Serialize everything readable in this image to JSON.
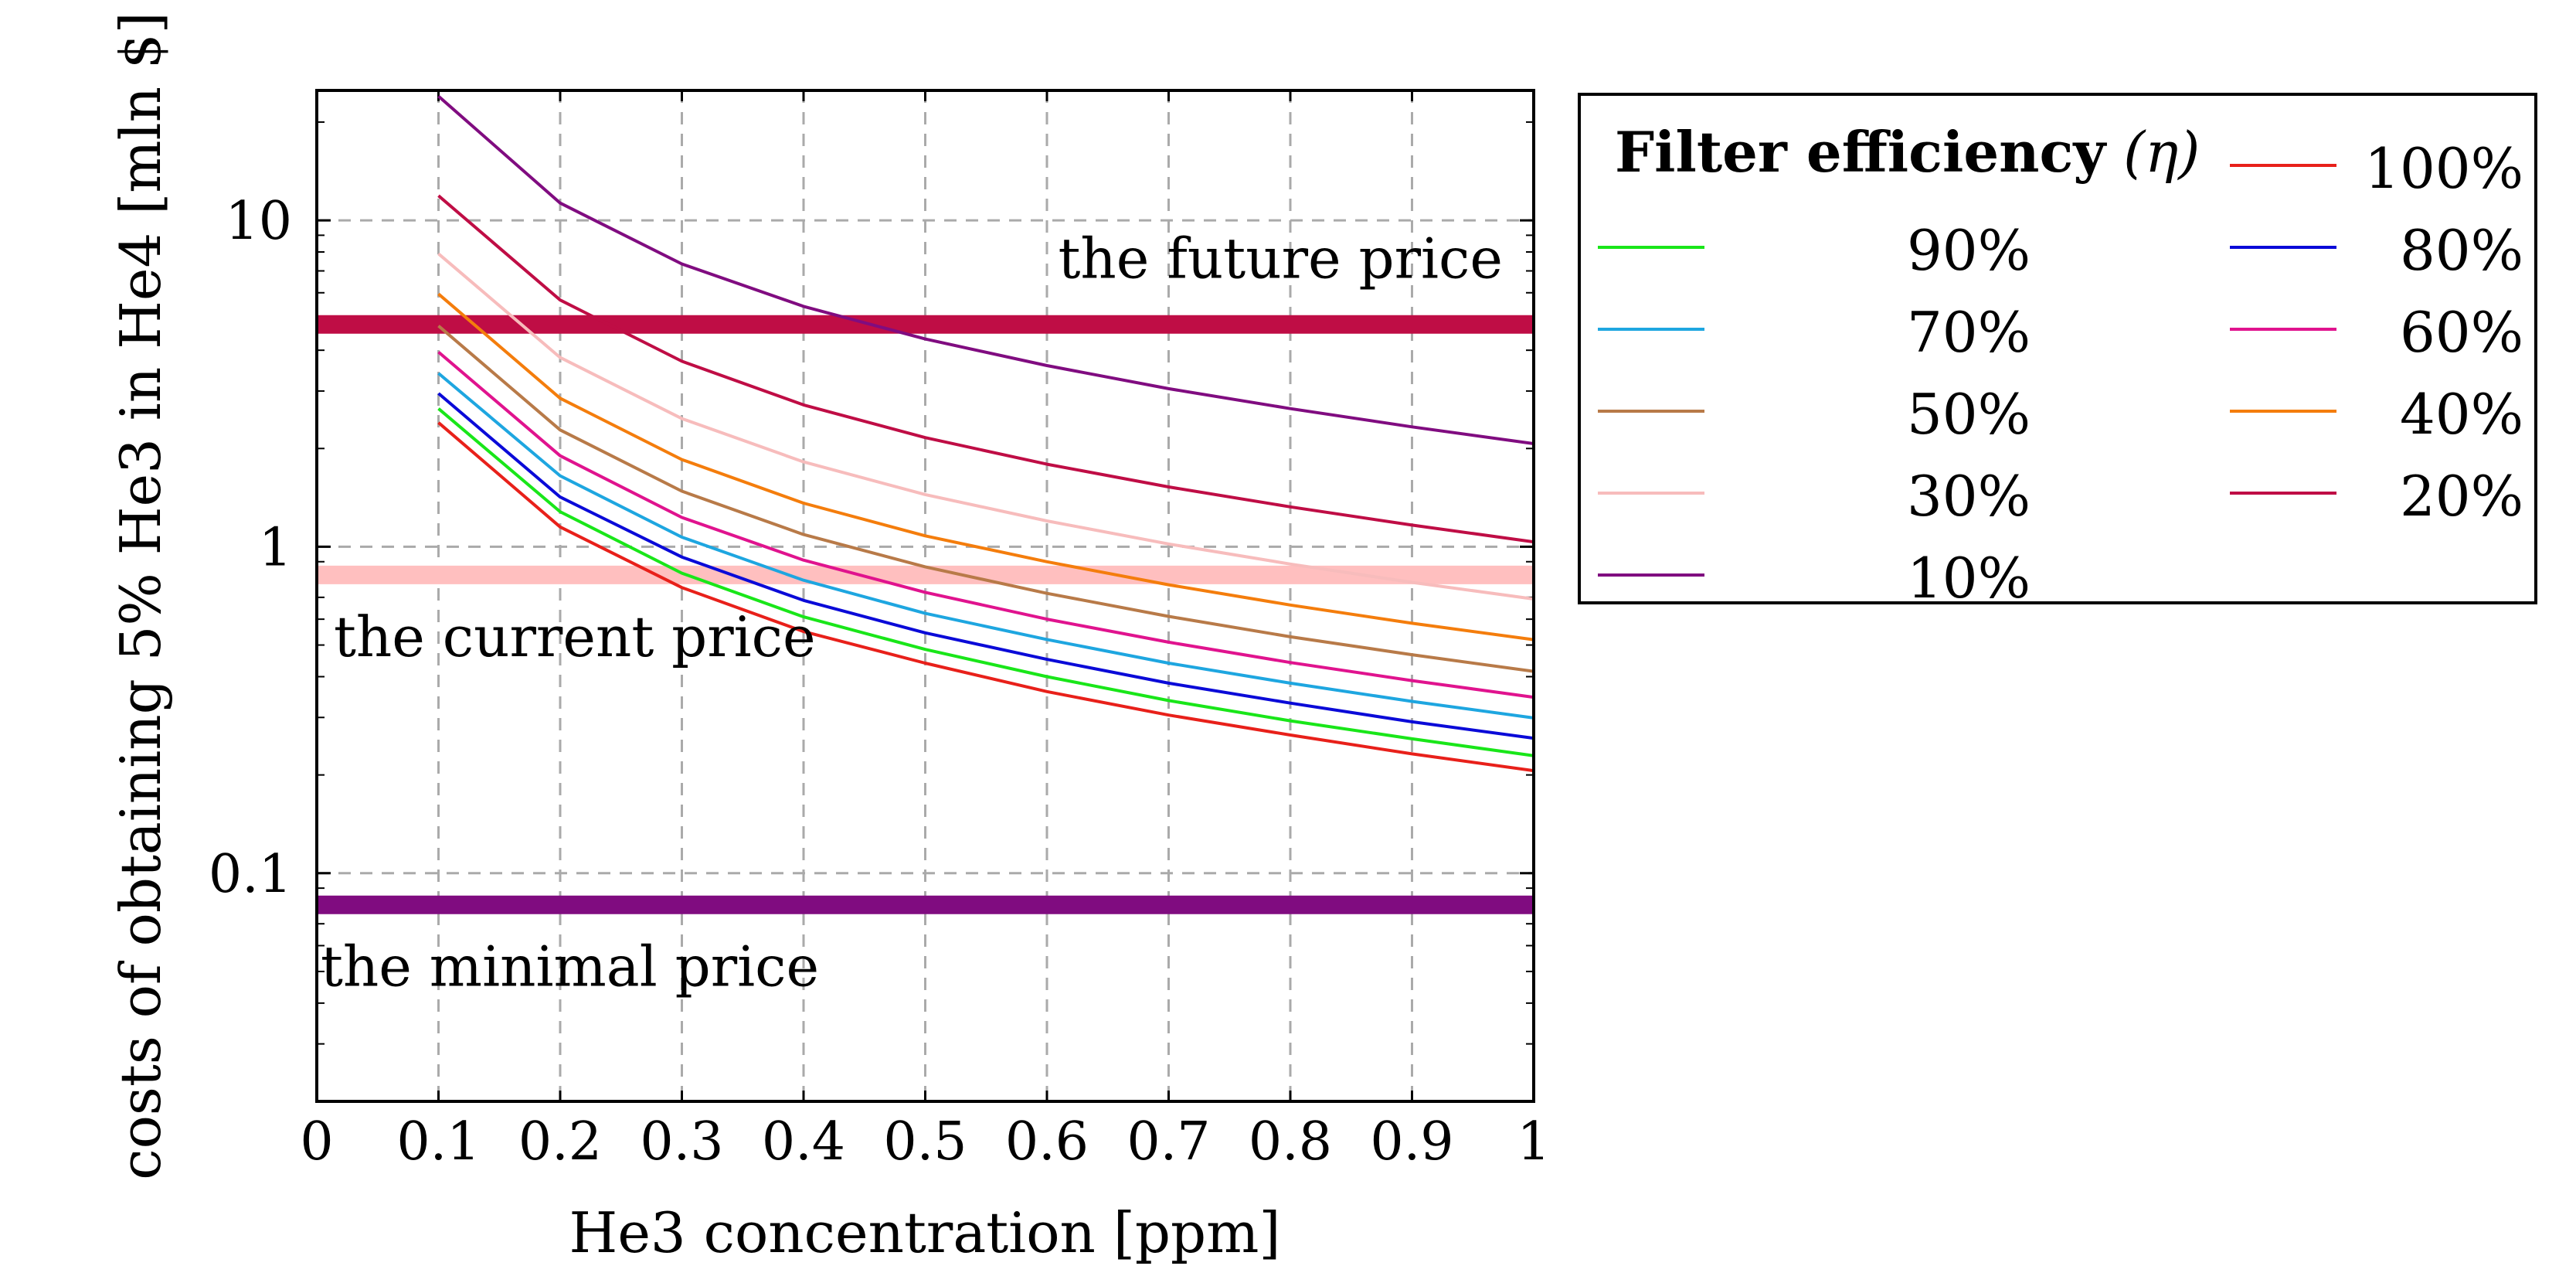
{
  "chart_data": {
    "type": "line",
    "title": "",
    "xlabel": "He3 concentration [ppm]",
    "ylabel": "costs of obtaining 5% He3 in He4 [mln $]",
    "xscale": "linear",
    "yscale": "log",
    "xlim": [
      0,
      1
    ],
    "ylim": [
      0.02,
      25
    ],
    "grid": true,
    "x_ticks": [
      0,
      0.1,
      0.2,
      0.3,
      0.4,
      0.5,
      0.6,
      0.7,
      0.8,
      0.9,
      1
    ],
    "x_tick_labels": [
      "0",
      "0.1",
      "0.2",
      "0.3",
      "0.4",
      "0.5",
      "0.6",
      "0.7",
      "0.8",
      "0.9",
      "1"
    ],
    "y_ticks": [
      0.1,
      1,
      10
    ],
    "y_tick_labels": [
      "0.1",
      "1",
      "10"
    ],
    "x": [
      0.1,
      0.2,
      0.3,
      0.4,
      0.5,
      0.6,
      0.7,
      0.8,
      0.9,
      1.0
    ],
    "legend": {
      "title_bold": "Filter efficiency",
      "title_symbol": "(η)",
      "placement": "outside-right"
    },
    "series": [
      {
        "name": "100%",
        "color": "#e8201a",
        "values": [
          2.4,
          1.15,
          0.75,
          0.55,
          0.44,
          0.36,
          0.305,
          0.265,
          0.232,
          0.206
        ]
      },
      {
        "name": "90%",
        "color": "#19e619",
        "values": [
          2.65,
          1.28,
          0.83,
          0.61,
          0.485,
          0.4,
          0.338,
          0.293,
          0.258,
          0.229
        ]
      },
      {
        "name": "80%",
        "color": "#0a0ad8",
        "values": [
          2.95,
          1.42,
          0.93,
          0.685,
          0.545,
          0.452,
          0.382,
          0.332,
          0.291,
          0.259
        ]
      },
      {
        "name": "70%",
        "color": "#1ea6e0",
        "values": [
          3.4,
          1.65,
          1.07,
          0.79,
          0.625,
          0.52,
          0.44,
          0.382,
          0.336,
          0.299
        ]
      },
      {
        "name": "60%",
        "color": "#e0138e",
        "values": [
          3.95,
          1.9,
          1.23,
          0.91,
          0.725,
          0.6,
          0.51,
          0.442,
          0.389,
          0.346
        ]
      },
      {
        "name": "50%",
        "color": "#b87a48",
        "values": [
          4.75,
          2.28,
          1.48,
          1.09,
          0.868,
          0.72,
          0.612,
          0.53,
          0.467,
          0.415
        ]
      },
      {
        "name": "40%",
        "color": "#f47d0c",
        "values": [
          5.95,
          2.85,
          1.85,
          1.36,
          1.08,
          0.9,
          0.765,
          0.663,
          0.583,
          0.519
        ]
      },
      {
        "name": "30%",
        "color": "#f7bcbc",
        "values": [
          7.9,
          3.8,
          2.47,
          1.82,
          1.445,
          1.2,
          1.02,
          0.885,
          0.778,
          0.692
        ]
      },
      {
        "name": "20%",
        "color": "#bf0d45",
        "values": [
          11.9,
          5.7,
          3.7,
          2.72,
          2.16,
          1.79,
          1.525,
          1.325,
          1.165,
          1.035
        ]
      },
      {
        "name": "10%",
        "color": "#800c80",
        "values": [
          24,
          11.3,
          7.35,
          5.45,
          4.33,
          3.59,
          3.05,
          2.65,
          2.33,
          2.07
        ]
      }
    ],
    "reference_lines": [
      {
        "label": "the future price",
        "value": 4.8,
        "color": "#bf0d45"
      },
      {
        "label": "the current price",
        "value": 0.82,
        "color": "#ffbfbf"
      },
      {
        "label": "the minimal price",
        "value": 0.08,
        "color": "#800c80"
      }
    ]
  }
}
